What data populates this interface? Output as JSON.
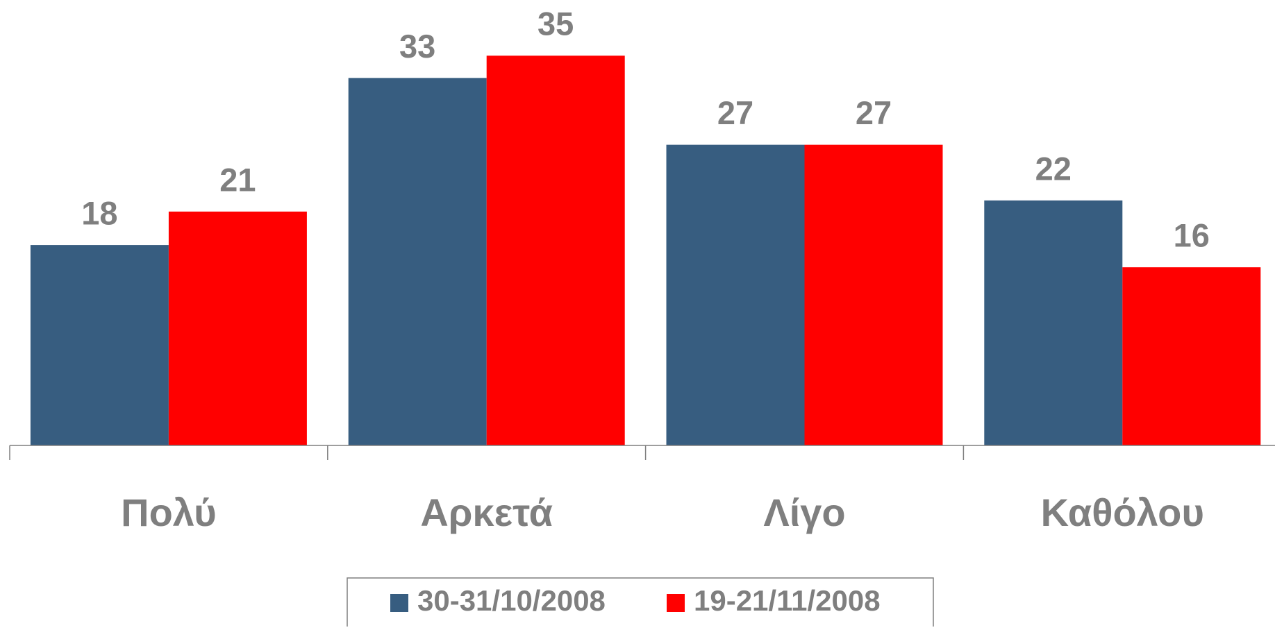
{
  "chart_data": {
    "type": "bar",
    "categories": [
      "Πολύ",
      "Αρκετά",
      "Λίγο",
      "Καθόλου"
    ],
    "series": [
      {
        "name": "30-31/10/2008",
        "color": "#375d80",
        "values": [
          18,
          33,
          27,
          22
        ]
      },
      {
        "name": "19-21/11/2008",
        "color": "#ff0000",
        "values": [
          21,
          35,
          27,
          16
        ]
      }
    ],
    "ylim": [
      0,
      40
    ]
  }
}
